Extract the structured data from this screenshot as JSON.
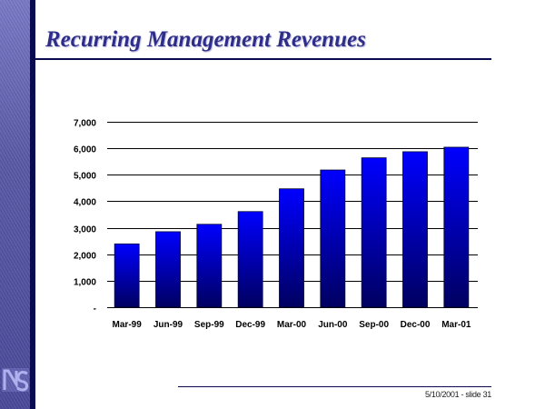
{
  "slide": {
    "title": "Recurring Management Revenues",
    "footer": "5/10/2001 - slide 31",
    "logo_text": "NS"
  },
  "colors": {
    "title": "#2e2e8a",
    "bar_top": "#0000ff",
    "bar_bottom": "#000060",
    "rule": "#0a0a50"
  },
  "chart_data": {
    "type": "bar",
    "title": "",
    "xlabel": "",
    "ylabel": "",
    "categories": [
      "Mar-99",
      "Jun-99",
      "Sep-99",
      "Dec-99",
      "Mar-00",
      "Jun-00",
      "Sep-00",
      "Dec-00",
      "Mar-01"
    ],
    "values": [
      2390,
      2850,
      3130,
      3610,
      4470,
      5180,
      5640,
      5870,
      6040
    ],
    "ylim": [
      0,
      7000
    ],
    "yticks": [
      0,
      1000,
      2000,
      3000,
      4000,
      5000,
      6000,
      7000
    ],
    "ytick_labels": [
      "-",
      "1,000",
      "2,000",
      "3,000",
      "4,000",
      "5,000",
      "6,000",
      "7,000"
    ],
    "grid": true,
    "legend": "none"
  }
}
